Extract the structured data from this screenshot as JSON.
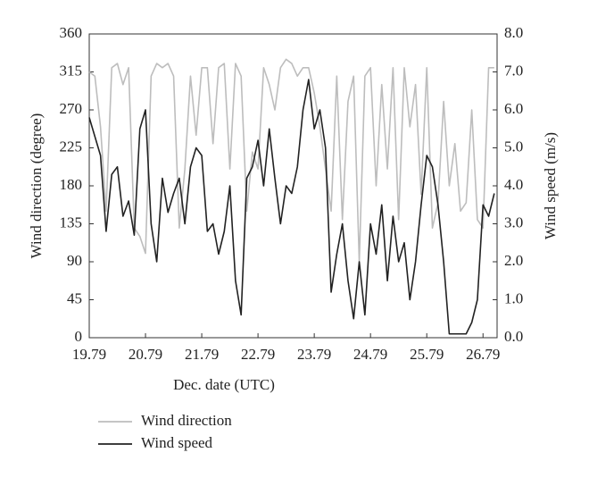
{
  "chart_data": {
    "type": "line",
    "x_label": "Dec. date (UTC)",
    "y_label": "Wind direction (degree)",
    "y2_label": "Wind speed (m/s)",
    "x": [
      19.79,
      19.89,
      19.99,
      20.09,
      20.19,
      20.29,
      20.39,
      20.49,
      20.59,
      20.69,
      20.79,
      20.89,
      20.99,
      21.09,
      21.19,
      21.29,
      21.39,
      21.49,
      21.59,
      21.69,
      21.79,
      21.89,
      21.99,
      22.09,
      22.19,
      22.29,
      22.39,
      22.49,
      22.59,
      22.69,
      22.79,
      22.89,
      22.99,
      23.09,
      23.19,
      23.29,
      23.39,
      23.49,
      23.59,
      23.69,
      23.79,
      23.89,
      23.99,
      24.09,
      24.19,
      24.29,
      24.39,
      24.49,
      24.59,
      24.69,
      24.79,
      24.89,
      24.99,
      25.09,
      25.19,
      25.29,
      25.39,
      25.49,
      25.59,
      25.69,
      25.79,
      25.89,
      25.99,
      26.09,
      26.19,
      26.29,
      26.39,
      26.49,
      26.59,
      26.69,
      26.79,
      26.89,
      26.99
    ],
    "series": [
      {
        "name": "Wind direction",
        "color": "#bdbdbd",
        "values": [
          315,
          310,
          250,
          150,
          320,
          325,
          300,
          320,
          130,
          120,
          100,
          310,
          325,
          320,
          325,
          310,
          130,
          200,
          310,
          240,
          320,
          320,
          230,
          320,
          325,
          200,
          325,
          310,
          150,
          220,
          200,
          320,
          300,
          270,
          320,
          330,
          325,
          310,
          320,
          320,
          290,
          250,
          200,
          150,
          310,
          140,
          280,
          310,
          90,
          310,
          320,
          180,
          300,
          200,
          320,
          140,
          320,
          250,
          300,
          170,
          320,
          130,
          160,
          280,
          180,
          230,
          150,
          160,
          270,
          140,
          130,
          320,
          320
        ]
      },
      {
        "name": "Wind speed",
        "color": "#222222",
        "axis": "y2",
        "values": [
          5.8,
          5.3,
          4.8,
          2.8,
          4.3,
          4.5,
          3.2,
          3.6,
          2.7,
          5.5,
          6.0,
          3.0,
          2.0,
          4.2,
          3.3,
          3.8,
          4.2,
          3.0,
          4.5,
          5.0,
          4.8,
          2.8,
          3.0,
          2.2,
          2.8,
          4.0,
          1.5,
          0.6,
          4.2,
          4.5,
          5.2,
          4.0,
          5.5,
          4.2,
          3.0,
          4.0,
          3.8,
          4.5,
          6.0,
          6.8,
          5.5,
          6.0,
          5.0,
          1.2,
          2.2,
          3.0,
          1.5,
          0.5,
          2.0,
          0.6,
          3.0,
          2.2,
          3.5,
          1.5,
          3.2,
          2.0,
          2.5,
          1.0,
          2.0,
          3.5,
          4.8,
          4.5,
          3.5,
          2.0,
          0.1,
          0.1,
          0.1,
          0.1,
          0.4,
          1.0,
          3.5,
          3.2,
          3.8
        ]
      }
    ],
    "xlim": [
      19.79,
      27.04
    ],
    "xticks": [
      19.79,
      20.79,
      21.79,
      22.79,
      23.79,
      24.79,
      25.79,
      26.79
    ],
    "ylim": [
      0,
      360
    ],
    "yticks": [
      0,
      45,
      90,
      135,
      180,
      225,
      270,
      315,
      360
    ],
    "y2lim": [
      0,
      8
    ],
    "y2ticks": [
      {
        "value": 0,
        "label": "0.0"
      },
      {
        "value": 1,
        "label": "1.0"
      },
      {
        "value": 2,
        "label": "2.0"
      },
      {
        "value": 3,
        "label": "3.0"
      },
      {
        "value": 4,
        "label": "4.0"
      },
      {
        "value": 5,
        "label": "5.0"
      },
      {
        "value": 6,
        "label": "6.0"
      },
      {
        "value": 7,
        "label": "7.0"
      },
      {
        "value": 8,
        "label": "8.0"
      }
    ],
    "legend": "bottom-left"
  }
}
